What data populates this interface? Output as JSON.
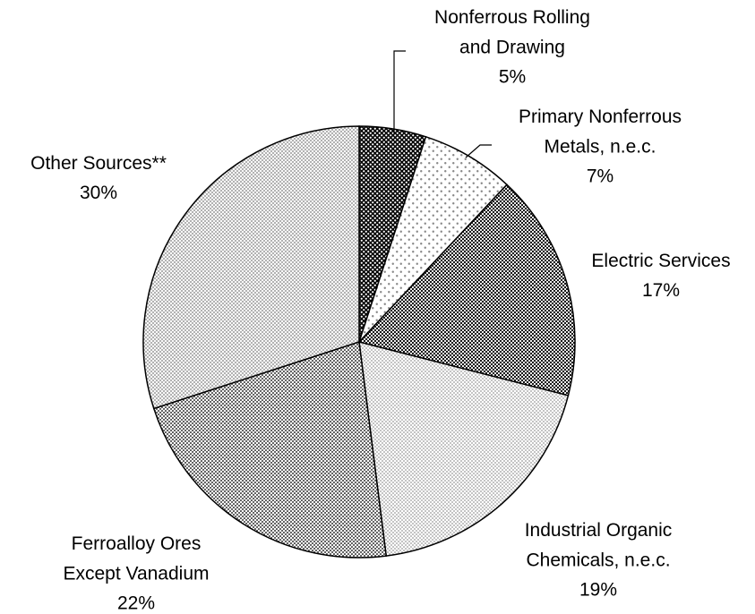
{
  "chart_data": {
    "type": "pie",
    "categories": [
      "Nonferrous Rolling\nand Drawing",
      "Primary Nonferrous\nMetals, n.e.c.",
      "Electric Services",
      "Industrial Organic\nChemicals, n.e.c.",
      "Ferroalloy Ores\nExcept Vanadium",
      "Other Sources**"
    ],
    "values": [
      5,
      7,
      17,
      19,
      22,
      30
    ],
    "value_labels": [
      "5%",
      "7%",
      "17%",
      "19%",
      "22%",
      "30%"
    ],
    "colors": [
      "#000000",
      "#ffffff",
      "#111111",
      "#ffffff",
      "#555555",
      "#b0b0b0"
    ]
  }
}
